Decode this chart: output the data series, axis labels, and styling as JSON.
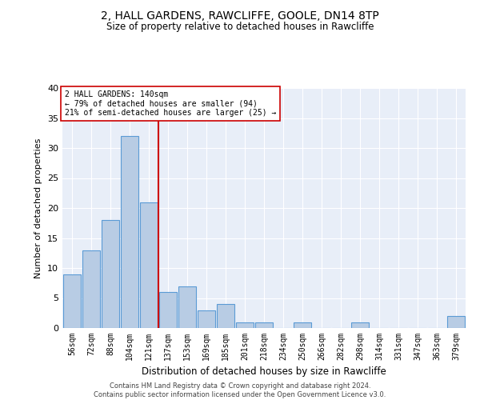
{
  "title1": "2, HALL GARDENS, RAWCLIFFE, GOOLE, DN14 8TP",
  "title2": "Size of property relative to detached houses in Rawcliffe",
  "xlabel": "Distribution of detached houses by size in Rawcliffe",
  "ylabel": "Number of detached properties",
  "categories": [
    "56sqm",
    "72sqm",
    "88sqm",
    "104sqm",
    "121sqm",
    "137sqm",
    "153sqm",
    "169sqm",
    "185sqm",
    "201sqm",
    "218sqm",
    "234sqm",
    "250sqm",
    "266sqm",
    "282sqm",
    "298sqm",
    "314sqm",
    "331sqm",
    "347sqm",
    "363sqm",
    "379sqm"
  ],
  "values": [
    9,
    13,
    18,
    32,
    21,
    6,
    7,
    3,
    4,
    1,
    1,
    0,
    1,
    0,
    0,
    1,
    0,
    0,
    0,
    0,
    2
  ],
  "bar_color": "#b8cce4",
  "bar_edge_color": "#5b9bd5",
  "property_line_label": "2 HALL GARDENS: 140sqm",
  "annotation_line1": "← 79% of detached houses are smaller (94)",
  "annotation_line2": "21% of semi-detached houses are larger (25) →",
  "annotation_box_color": "#ffffff",
  "annotation_box_edge": "#cc0000",
  "vline_color": "#cc0000",
  "vline_x": 4.5,
  "ylim": [
    0,
    40
  ],
  "yticks": [
    0,
    5,
    10,
    15,
    20,
    25,
    30,
    35,
    40
  ],
  "background_color": "#e8eef8",
  "footer_line1": "Contains HM Land Registry data © Crown copyright and database right 2024.",
  "footer_line2": "Contains public sector information licensed under the Open Government Licence v3.0."
}
